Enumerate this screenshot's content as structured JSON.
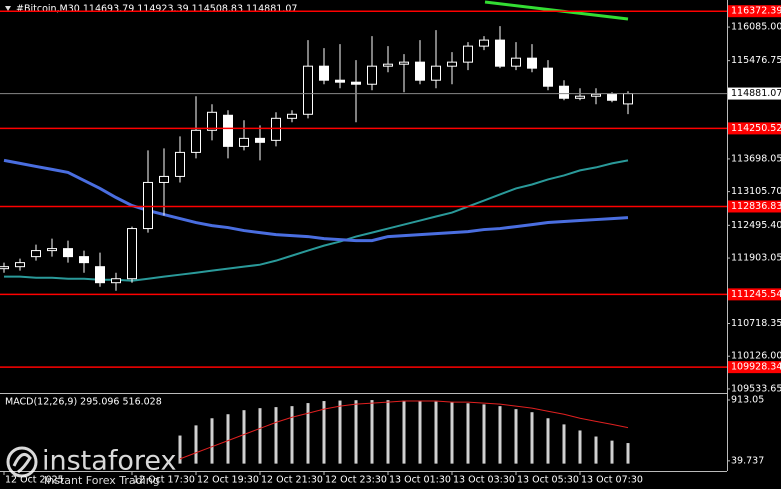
{
  "chart_data": [
    {
      "type": "candlestick",
      "title": "#Bitcoin,M30  114693.79 114923.39 114508.83 114881.07",
      "categories": [
        "12 Oct 2025",
        null,
        null,
        null,
        null,
        null,
        null,
        null,
        "12 Oct 17:30",
        null,
        null,
        null,
        "12 Oct 19:30",
        null,
        null,
        null,
        "12 Oct 21:30",
        null,
        null,
        null,
        "12 Oct 23:30",
        null,
        null,
        null,
        "13 Oct 01:30",
        null,
        null,
        null,
        "13 Oct 03:30",
        null,
        null,
        null,
        "13 Oct 05:30",
        null,
        null,
        null,
        "13 Oct 07:30",
        null,
        null,
        null
      ],
      "open": [
        111711,
        111747,
        111929,
        112038,
        112074,
        111929,
        111747,
        111457,
        111529,
        112437,
        113272,
        113381,
        113816,
        114216,
        114488,
        113925,
        114070,
        114034,
        114433,
        114506,
        115377,
        115123,
        115087,
        115050,
        115377,
        115413,
        115450,
        115123,
        115377,
        115450,
        115740,
        115849,
        115377,
        115522,
        115341,
        115014,
        114796,
        114833,
        114869,
        114693.79
      ],
      "high": [
        111820,
        111892,
        112146,
        112255,
        112219,
        112038,
        112001,
        111638,
        112473,
        113853,
        113889,
        114107,
        114833,
        114687,
        114579,
        114397,
        114306,
        114542,
        114579,
        115849,
        115704,
        115776,
        115486,
        115922,
        115740,
        115595,
        115849,
        116030,
        115631,
        115813,
        115922,
        116103,
        115813,
        115776,
        115486,
        115123,
        114978,
        114978,
        114905,
        114923.39
      ],
      "low": [
        111638,
        111675,
        111856,
        111929,
        111820,
        111638,
        111384,
        111312,
        111457,
        112364,
        112673,
        113272,
        113707,
        114034,
        113707,
        113853,
        113671,
        113925,
        114361,
        114433,
        115050,
        114978,
        114361,
        114942,
        115268,
        114905,
        115050,
        114978,
        115050,
        115305,
        115668,
        115341,
        115305,
        115268,
        114942,
        114760,
        114760,
        114687,
        114724,
        114508.83
      ],
      "close": [
        111747,
        111820,
        112038,
        112074,
        111929,
        111820,
        111457,
        111529,
        112437,
        113272,
        113381,
        113816,
        114216,
        114542,
        113925,
        114070,
        113998,
        114433,
        114506,
        115377,
        115123,
        115087,
        115050,
        115377,
        115413,
        115450,
        115123,
        115377,
        115450,
        115740,
        115849,
        115377,
        115522,
        115341,
        115014,
        114796,
        114833,
        114869,
        114760,
        114881.07
      ],
      "lines": [
        {
          "color": "#2a9a9a",
          "values": [
            111566,
            111566,
            111547,
            111547,
            111529,
            111529,
            111511,
            111511,
            111493,
            111529,
            111566,
            111602,
            111638,
            111675,
            111711,
            111747,
            111783,
            111856,
            111947,
            112038,
            112128,
            112201,
            112292,
            112364,
            112437,
            112509,
            112582,
            112655,
            112727,
            112836,
            112945,
            113054,
            113163,
            113235,
            113326,
            113399,
            113490,
            113544,
            113617,
            113671
          ]
        },
        {
          "color": "#4a6ee0",
          "values": [
            113671,
            113617,
            113562,
            113508,
            113453,
            113308,
            113163,
            112999,
            112854,
            112764,
            112691,
            112618,
            112546,
            112491,
            112455,
            112401,
            112364,
            112328,
            112310,
            112292,
            112255,
            112237,
            112219,
            112219,
            112292,
            112310,
            112328,
            112346,
            112364,
            112382,
            112419,
            112437,
            112473,
            112509,
            112546,
            112564,
            112582,
            112600,
            112618,
            112636
          ]
        }
      ],
      "levels": {
        "color": "#ff0000",
        "values": [
          116372.39,
          114250.52,
          112836.83,
          111245.54,
          109928.34
        ]
      },
      "current_price": 114881.07,
      "ylim": [
        109460,
        116575
      ],
      "yticks": [
        {
          "value": 116085,
          "label": "116085.00"
        },
        115476.75,
        113698.05,
        {
          "value": 113105.7,
          "label": "113105.70"
        },
        {
          "value": 112495.4,
          "label": "112495.40"
        },
        111903.05,
        110718.35,
        {
          "value": 110126,
          "label": "110126.00"
        },
        109533.65
      ]
    },
    {
      "type": "macd",
      "title": "MACD(12,26,9) 295.096 516.028",
      "series": [
        {
          "color": "#d0d0d0",
          "values": [
            null,
            null,
            null,
            null,
            null,
            null,
            null,
            null,
            null,
            null,
            null,
            403,
            549,
            651,
            709,
            767,
            796,
            811,
            825,
            869,
            898,
            905,
            910,
            912,
            910,
            905,
            898,
            890,
            880,
            866,
            850,
            825,
            782,
            738,
            651,
            563,
            476,
            389,
            330,
            295.096
          ]
        },
        {
          "color": "#e02020",
          "values": [
            null,
            null,
            null,
            null,
            null,
            null,
            null,
            null,
            null,
            null,
            null,
            68,
            156,
            243,
            330,
            418,
            505,
            592,
            665,
            723,
            782,
            825,
            854,
            869,
            883,
            898,
            898,
            898,
            883,
            883,
            869,
            854,
            825,
            796,
            752,
            709,
            651,
            607,
            563,
            516.028
          ]
        }
      ],
      "ylim": [
        -106,
        985
      ],
      "yticks": [
        913.05,
        39.737
      ]
    }
  ],
  "watermark": {
    "brand": "instaforex",
    "tagline": "Instant Forex Trading"
  }
}
